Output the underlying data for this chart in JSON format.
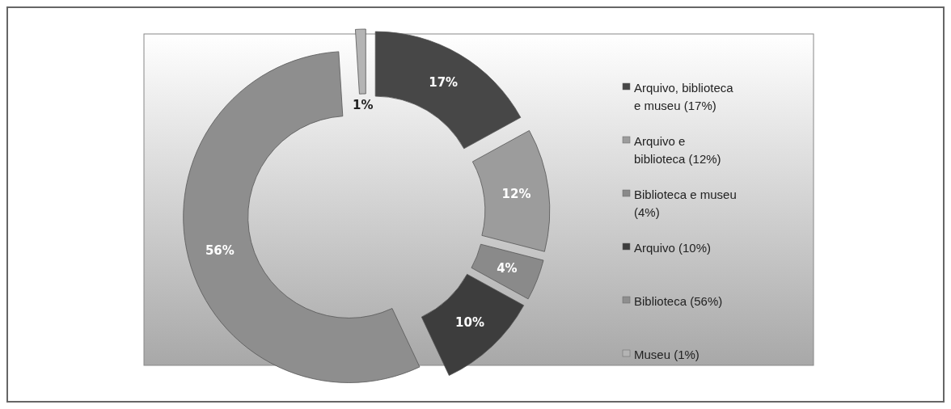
{
  "chart_data": {
    "type": "donut",
    "categories": [
      "Arquivo, biblioteca e museu (17%)",
      "Arquivo e biblioteca (12%)",
      "Biblioteca e museu (4%)",
      "Arquivo (10%)",
      "Biblioteca (56%)",
      "Museu (1%)"
    ],
    "values": [
      17,
      12,
      4,
      10,
      56,
      1
    ],
    "colors": [
      "#474747",
      "#9c9c9c",
      "#8a8a8a",
      "#3d3d3d",
      "#8e8e8e",
      "#b4b4b4"
    ],
    "value_labels": [
      "17%",
      "12%",
      "4%",
      "10%",
      "56%",
      "1%"
    ],
    "legend": "right"
  }
}
